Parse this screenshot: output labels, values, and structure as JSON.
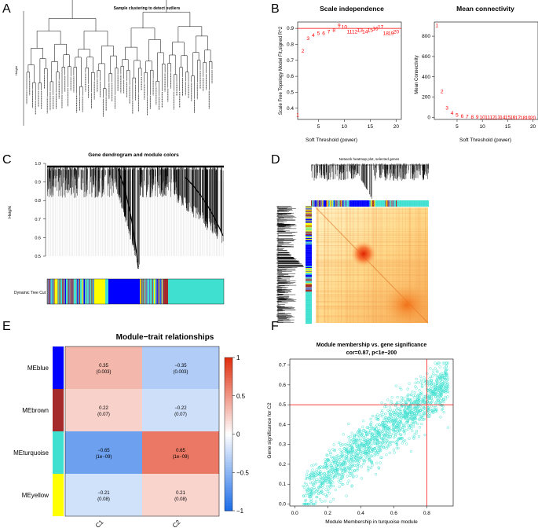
{
  "figure": {
    "panel_labels": [
      "A",
      "B",
      "C",
      "D",
      "E",
      "F"
    ]
  },
  "panelA": {
    "title": "Sample clustering to detect outliers",
    "ylabel": "Height"
  },
  "panelB": {
    "left": {
      "title": "Scale independence",
      "xlabel": "Soft Threshold (power)",
      "ylabel": "Scale Free Topology Model Fit,signed R^2"
    },
    "right": {
      "title": "Mean connectivity",
      "xlabel": "Soft Threshold (power)",
      "ylabel": "Mean Connectivity"
    }
  },
  "panelC": {
    "title": "Gene dendrogram and module colors",
    "ylabel": "Height",
    "colorbar_label": "Dynamic Tree Cut"
  },
  "panelD": {
    "title": "Network heatmap plot, selected genes"
  },
  "panelE": {
    "title": "Module−trait relationships"
  },
  "panelF": {
    "title": "Module membership vs. gene significance",
    "subtitle": "cor=0.87, p<1e−200",
    "xlabel": "Module Membership in turquoise module",
    "ylabel": "Gene significance for  C2"
  },
  "chart_data": [
    {
      "id": "scale_independence",
      "type": "scatter",
      "title": "Scale independence",
      "xlabel": "Soft Threshold (power)",
      "ylabel": "Scale Free Topology Model Fit,signed R^2",
      "x": [
        1,
        2,
        3,
        4,
        5,
        6,
        7,
        8,
        9,
        10,
        11,
        12,
        13,
        14,
        15,
        16,
        17,
        18,
        19,
        20
      ],
      "y": [
        0.36,
        0.76,
        0.84,
        0.86,
        0.87,
        0.87,
        0.88,
        0.89,
        0.92,
        0.91,
        0.88,
        0.88,
        0.89,
        0.88,
        0.89,
        0.9,
        0.91,
        0.87,
        0.87,
        0.88
      ],
      "xlim": [
        1,
        21
      ],
      "ylim": [
        0.33,
        0.94
      ],
      "xticks": [
        5,
        10,
        15,
        20
      ],
      "yticks": [
        0.4,
        0.5,
        0.6,
        0.7,
        0.8,
        0.9
      ],
      "hline": 0.9,
      "marker_color": "#ff0000"
    },
    {
      "id": "mean_connectivity",
      "type": "scatter",
      "title": "Mean connectivity",
      "xlabel": "Soft Threshold (power)",
      "ylabel": "Mean Connectivity",
      "x": [
        1,
        2,
        3,
        4,
        5,
        6,
        7,
        8,
        9,
        10,
        11,
        12,
        13,
        14,
        15,
        16,
        17,
        18,
        19,
        20
      ],
      "y": [
        910,
        260,
        95,
        45,
        25,
        15,
        10,
        8,
        6,
        5,
        4,
        3,
        3,
        2,
        2,
        2,
        1,
        1,
        1,
        1
      ],
      "xlim": [
        0.5,
        21
      ],
      "ylim": [
        -20,
        940
      ],
      "xticks": [
        5,
        10,
        15,
        20
      ],
      "yticks": [
        0,
        200,
        400,
        600,
        800
      ],
      "marker_color": "#ff0000"
    },
    {
      "id": "module_trait",
      "type": "heatmap",
      "title": "Module−trait relationships",
      "rows": [
        "MEblue",
        "MEbrown",
        "MEturquoise",
        "MEyellow"
      ],
      "row_colors": [
        "#0000ff",
        "#a52a2a",
        "#40e0d0",
        "#ffff00"
      ],
      "columns": [
        "C1",
        "C2"
      ],
      "values": [
        [
          0.35,
          -0.35
        ],
        [
          0.22,
          -0.22
        ],
        [
          -0.65,
          0.65
        ],
        [
          -0.21,
          0.21
        ]
      ],
      "pvalues": [
        [
          "(0.003)",
          "(0.003)"
        ],
        [
          "(0.07)",
          "(0.07)"
        ],
        [
          "(1e−09)",
          "(1e−09)"
        ],
        [
          "(0.08)",
          "(0.08)"
        ]
      ],
      "value_labels": [
        [
          "0.35",
          "−0.35"
        ],
        [
          "0.22",
          "−0.22"
        ],
        [
          "−0.65",
          "0.65"
        ],
        [
          "−0.21",
          "0.21"
        ]
      ],
      "colorbar_ticks": [
        1,
        0.5,
        0,
        -0.5,
        -1
      ],
      "colorbar_tick_labels": [
        "1",
        "0.5",
        "0",
        "−0.5",
        "−1"
      ],
      "colorbar_range": [
        -1,
        1
      ]
    },
    {
      "id": "mm_vs_gs",
      "type": "scatter",
      "title": "Module membership vs. gene significance",
      "subtitle": "cor=0.87, p<1e−200",
      "xlabel": "Module Membership in turquoise module",
      "ylabel": "Gene significance for  C2",
      "xlim": [
        -0.03,
        0.96
      ],
      "ylim": [
        -0.01,
        0.73
      ],
      "xticks": [
        0,
        0.2,
        0.4,
        0.6,
        0.8
      ],
      "yticks": [
        0,
        0.1,
        0.2,
        0.3,
        0.4,
        0.5,
        0.6,
        0.7
      ],
      "vline": 0.8,
      "hline": 0.5,
      "trend": {
        "slope": 0.63,
        "intercept": 0.02
      },
      "n_points": 1600,
      "marker_color": "#40e0d0",
      "line_color": "#ff0000"
    }
  ]
}
